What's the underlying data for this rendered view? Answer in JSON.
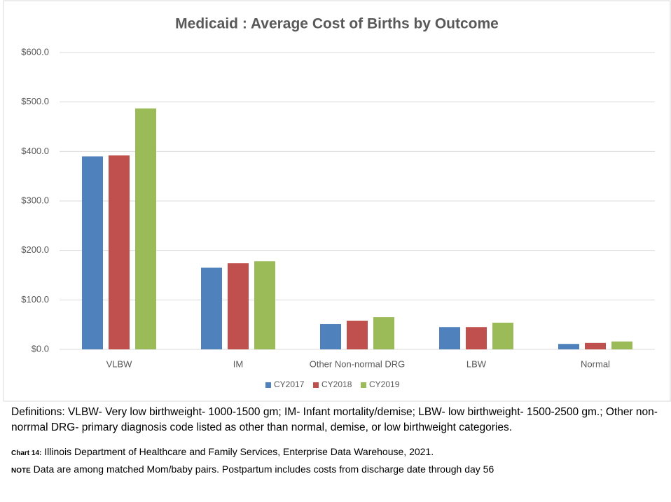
{
  "chart_data": {
    "type": "bar",
    "title": "Medicaid : Average Cost of Births by Outcome",
    "categories": [
      "VLBW",
      "IM",
      "Other Non-normal DRG",
      "LBW",
      "Normal"
    ],
    "series": [
      {
        "name": "CY2017",
        "color": "#4f81bd",
        "values": [
          390,
          165,
          51,
          45,
          11
        ]
      },
      {
        "name": "CY2018",
        "color": "#c0504d",
        "values": [
          392,
          174,
          58,
          45,
          13
        ]
      },
      {
        "name": "CY2019",
        "color": "#9bbb59",
        "values": [
          487,
          178,
          65,
          54,
          16
        ]
      }
    ],
    "ylim": [
      0,
      600
    ],
    "yticks": [
      {
        "value": 0,
        "label": "$0.0"
      },
      {
        "value": 100,
        "label": "$100.0"
      },
      {
        "value": 200,
        "label": "$200.0"
      },
      {
        "value": 300,
        "label": "$300.0"
      },
      {
        "value": 400,
        "label": "$400.0"
      },
      {
        "value": 500,
        "label": "$500.0"
      },
      {
        "value": 600,
        "label": "$600.0"
      }
    ],
    "grid": true,
    "legend": "bottom"
  },
  "notes": {
    "definitions": "Definitions: VLBW- Very low birthweight- 1000-1500 gm; IM- Infant mortality/demise; LBW- low birthweight- 1500-2500 gm.; Other non-norrmal DRG- primary diagnosis code listed as other than normal, demise, or low birthweight categories.",
    "source_label": "Chart 14:",
    "source": "Illinois Department of Healthcare and Family Services, Enterprise Data Warehouse, 2021.",
    "note_label": "NOTE",
    "note": "Data are among matched Mom/baby pairs. Postpartum includes costs from discharge date through day 56"
  }
}
